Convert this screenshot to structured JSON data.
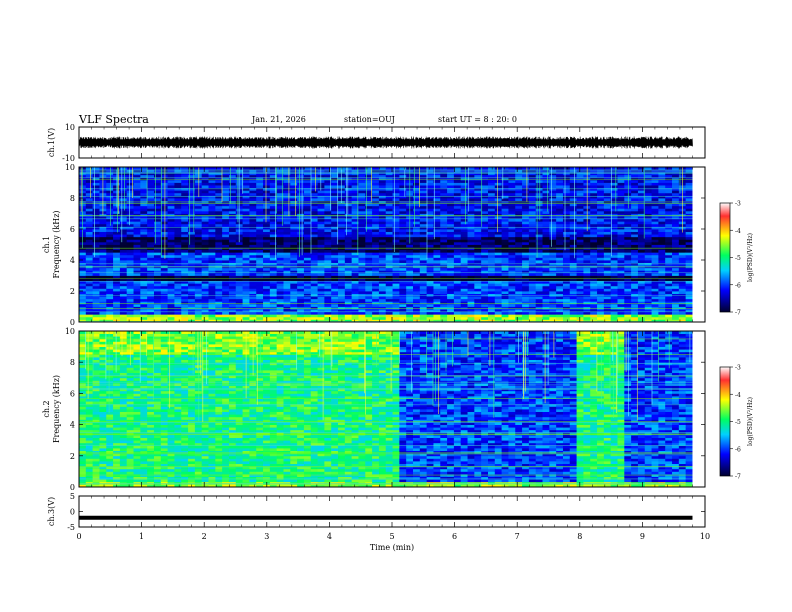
{
  "header": {
    "title": "VLF Spectra",
    "date": "Jan. 21, 2026",
    "station": "station=OUJ",
    "start": "start UT =  8 : 20: 0"
  },
  "colorbar": {
    "label": "log(PSD)(V²/Hz)",
    "ticks": [
      "-3",
      "-4",
      "-5",
      "-6",
      "-7"
    ],
    "colors": [
      "#8b0000",
      "#ff0000",
      "#ffff00",
      "#00ff00",
      "#00ffff",
      "#0000ff",
      "#000000"
    ]
  },
  "chart_data": [
    {
      "type": "line",
      "panel": "ch1-waveform",
      "ylabel": "ch.1(V)",
      "ylim": [
        -10,
        10
      ],
      "y_ticks": [
        "10",
        "-10"
      ],
      "x": [
        0,
        10
      ],
      "series": [
        {
          "values": [
            0,
            0
          ]
        }
      ]
    },
    {
      "type": "heatmap",
      "panel": "ch1-spectrogram",
      "ylabel": "ch.1\nFrequency (kHz)",
      "xlim": [
        0,
        10
      ],
      "ylim": [
        0,
        10
      ],
      "y_ticks": [
        "0",
        "2",
        "4",
        "6",
        "8",
        "10"
      ],
      "data_end_min": 9.8,
      "level_profile": [
        {
          "freq_khz": [
            0.0,
            0.5
          ],
          "log_psd": -4.5
        },
        {
          "freq_khz": [
            0.5,
            2.6
          ],
          "log_psd": -6.0
        },
        {
          "freq_khz": [
            2.6,
            3.0
          ],
          "log_psd": -7.0
        },
        {
          "freq_khz": [
            3.0,
            4.5
          ],
          "log_psd": -6.0
        },
        {
          "freq_khz": [
            4.5,
            5.5
          ],
          "log_psd": -6.8
        },
        {
          "freq_khz": [
            5.5,
            10.0
          ],
          "log_psd": -6.2
        }
      ]
    },
    {
      "type": "heatmap",
      "panel": "ch2-spectrogram",
      "ylabel": "ch.2\nFrequency (kHz)",
      "xlim": [
        0,
        10
      ],
      "ylim": [
        0,
        10
      ],
      "y_ticks": [
        "0",
        "2",
        "4",
        "6",
        "8",
        "10"
      ],
      "data_end_min": 9.8,
      "segments": [
        {
          "t_min": [
            0.0,
            5.1
          ],
          "log_psd": -5.0
        },
        {
          "t_min": [
            5.1,
            8.0
          ],
          "log_psd": -6.0
        },
        {
          "t_min": [
            8.0,
            8.7
          ],
          "log_psd": -5.0
        },
        {
          "t_min": [
            8.7,
            9.8
          ],
          "log_psd": -6.0
        }
      ]
    },
    {
      "type": "line",
      "panel": "ch3-waveform",
      "ylabel": "ch.3(V)",
      "xlabel": "Time (min)",
      "ylim": [
        -5,
        5
      ],
      "y_ticks": [
        "5",
        "0",
        "-5"
      ],
      "x_ticks": [
        "0",
        "1",
        "2",
        "3",
        "4",
        "5",
        "6",
        "7",
        "8",
        "9",
        "10"
      ],
      "x": [
        0,
        9.8
      ],
      "series": [
        {
          "values": [
            -2,
            -2
          ]
        }
      ]
    }
  ]
}
